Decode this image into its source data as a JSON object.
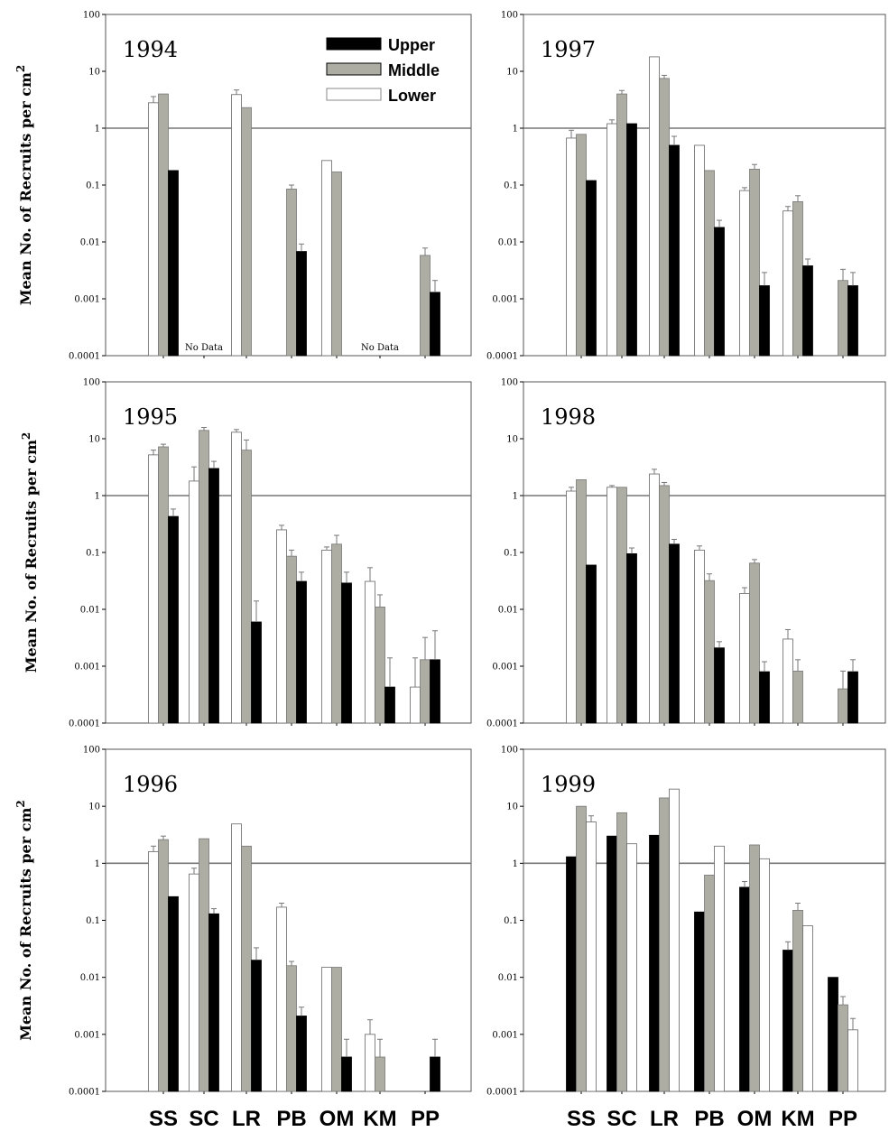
{
  "y_axis_label": "Mean No. of Recruits per cm",
  "y_axis_label_sup": "2",
  "y_tick_labels": [
    "100",
    "10",
    "1",
    "0.1",
    "0.01",
    "0.001",
    "0.0001"
  ],
  "x_category_labels": [
    "SS",
    "SC",
    "LR",
    "PB",
    "OM",
    "KM",
    "PP"
  ],
  "legend": [
    {
      "name": "Upper",
      "color": "#000000"
    },
    {
      "name": "Middle",
      "color": "#adada3"
    },
    {
      "name": "Lower",
      "color": "#ffffff"
    }
  ],
  "no_data_label": "No Data",
  "chart_data": [
    {
      "type": "bar",
      "title": "1994",
      "scale": "log",
      "ylim": [
        0.0001,
        100
      ],
      "reference_line": 1,
      "categories": [
        "SS",
        "SC",
        "LR",
        "PB",
        "OM",
        "KM",
        "PP"
      ],
      "series_order": [
        "Lower",
        "Middle",
        "Upper"
      ],
      "series": [
        {
          "name": "Lower",
          "values": [
            2.8,
            null,
            3.9,
            null,
            0.27,
            null,
            null
          ],
          "errors": [
            3.6,
            null,
            4.7,
            null,
            null,
            null,
            null
          ]
        },
        {
          "name": "Middle",
          "values": [
            4.0,
            null,
            2.3,
            0.085,
            0.17,
            null,
            0.0058
          ],
          "errors": [
            null,
            null,
            null,
            0.1,
            null,
            null,
            0.0078
          ]
        },
        {
          "name": "Upper",
          "values": [
            0.18,
            null,
            null,
            0.0068,
            null,
            null,
            0.0013
          ],
          "errors": [
            null,
            null,
            null,
            0.0092,
            null,
            null,
            0.0021
          ]
        }
      ],
      "annotations": [
        {
          "category": "SC",
          "text": "No Data"
        },
        {
          "category": "KM",
          "text": "No Data"
        }
      ]
    },
    {
      "type": "bar",
      "title": "1997",
      "scale": "log",
      "ylim": [
        0.0001,
        100
      ],
      "reference_line": 1,
      "categories": [
        "SS",
        "SC",
        "LR",
        "PB",
        "OM",
        "KM",
        "PP"
      ],
      "series_order": [
        "Lower",
        "Middle",
        "Upper"
      ],
      "series": [
        {
          "name": "Lower",
          "values": [
            0.67,
            1.2,
            18,
            0.5,
            0.08,
            0.035,
            null
          ],
          "errors": [
            0.92,
            1.4,
            null,
            null,
            0.09,
            0.042,
            null
          ]
        },
        {
          "name": "Middle",
          "values": [
            0.78,
            4.0,
            7.5,
            0.18,
            0.19,
            0.051,
            0.0021
          ],
          "errors": [
            null,
            4.6,
            8.5,
            null,
            0.23,
            0.065,
            0.0033
          ]
        },
        {
          "name": "Upper",
          "values": [
            0.12,
            1.2,
            0.5,
            0.018,
            0.0017,
            0.0038,
            0.0017
          ],
          "errors": [
            null,
            null,
            0.72,
            0.024,
            0.0029,
            0.005,
            0.0029
          ]
        }
      ],
      "annotations": []
    },
    {
      "type": "bar",
      "title": "1995",
      "scale": "log",
      "ylim": [
        0.0001,
        100
      ],
      "reference_line": 1,
      "categories": [
        "SS",
        "SC",
        "LR",
        "PB",
        "OM",
        "KM",
        "PP"
      ],
      "series_order": [
        "Lower",
        "Middle",
        "Upper"
      ],
      "series": [
        {
          "name": "Lower",
          "values": [
            5.2,
            1.8,
            13,
            0.25,
            0.11,
            0.031,
            0.00043
          ],
          "errors": [
            6.3,
            3.2,
            14.5,
            0.3,
            0.125,
            0.054,
            0.0014
          ]
        },
        {
          "name": "Middle",
          "values": [
            7.2,
            14,
            6.3,
            0.086,
            0.14,
            0.011,
            0.0013
          ],
          "errors": [
            8.0,
            15.8,
            9.5,
            0.11,
            0.2,
            0.018,
            0.0032
          ]
        },
        {
          "name": "Upper",
          "values": [
            0.43,
            3.0,
            0.006,
            0.031,
            0.029,
            0.00043,
            0.0013
          ],
          "errors": [
            0.58,
            4.0,
            0.014,
            0.045,
            0.045,
            0.0014,
            0.0042
          ]
        }
      ],
      "annotations": []
    },
    {
      "type": "bar",
      "title": "1998",
      "scale": "log",
      "ylim": [
        0.0001,
        100
      ],
      "reference_line": 1,
      "categories": [
        "SS",
        "SC",
        "LR",
        "PB",
        "OM",
        "KM",
        "PP"
      ],
      "series_order": [
        "Lower",
        "Middle",
        "Upper"
      ],
      "series": [
        {
          "name": "Lower",
          "values": [
            1.2,
            1.4,
            2.4,
            0.11,
            0.019,
            0.003,
            null
          ],
          "errors": [
            1.4,
            1.5,
            2.9,
            0.13,
            0.024,
            0.0044,
            null
          ]
        },
        {
          "name": "Middle",
          "values": [
            1.9,
            1.4,
            1.5,
            0.032,
            0.065,
            0.00082,
            0.0004
          ],
          "errors": [
            null,
            null,
            1.7,
            0.042,
            0.075,
            0.0013,
            0.00082
          ]
        },
        {
          "name": "Upper",
          "values": [
            0.06,
            0.095,
            0.14,
            0.0021,
            0.0008,
            null,
            0.0008
          ],
          "errors": [
            null,
            0.12,
            0.17,
            0.0027,
            0.0012,
            null,
            0.0013
          ]
        }
      ],
      "annotations": []
    },
    {
      "type": "bar",
      "title": "1996",
      "scale": "log",
      "ylim": [
        0.0001,
        100
      ],
      "reference_line": 1,
      "categories": [
        "SS",
        "SC",
        "LR",
        "PB",
        "OM",
        "KM",
        "PP"
      ],
      "series_order": [
        "Lower",
        "Middle",
        "Upper"
      ],
      "series": [
        {
          "name": "Lower",
          "values": [
            1.6,
            0.65,
            4.9,
            0.17,
            0.015,
            0.001,
            null
          ],
          "errors": [
            2.0,
            0.82,
            null,
            0.2,
            null,
            0.0018,
            null
          ]
        },
        {
          "name": "Middle",
          "values": [
            2.6,
            2.7,
            2.0,
            0.016,
            0.015,
            0.0004,
            null
          ],
          "errors": [
            3.0,
            null,
            null,
            0.019,
            null,
            0.00082,
            null
          ]
        },
        {
          "name": "Upper",
          "values": [
            0.26,
            0.13,
            0.02,
            0.0021,
            0.0004,
            null,
            0.0004
          ],
          "errors": [
            null,
            0.16,
            0.033,
            0.003,
            0.00082,
            null,
            0.00082
          ]
        }
      ],
      "annotations": []
    },
    {
      "type": "bar",
      "title": "1999",
      "scale": "log",
      "ylim": [
        0.0001,
        100
      ],
      "reference_line": 1,
      "categories": [
        "SS",
        "SC",
        "LR",
        "PB",
        "OM",
        "KM",
        "PP"
      ],
      "series_order": [
        "Upper",
        "Middle",
        "Lower"
      ],
      "series": [
        {
          "name": "Upper",
          "values": [
            1.3,
            3.0,
            3.1,
            0.14,
            0.38,
            0.03,
            0.01
          ],
          "errors": [
            null,
            null,
            null,
            null,
            0.48,
            0.042,
            null
          ]
        },
        {
          "name": "Middle",
          "values": [
            10,
            7.7,
            14,
            0.62,
            2.1,
            0.15,
            0.0033
          ],
          "errors": [
            null,
            null,
            null,
            null,
            null,
            0.2,
            0.0046
          ]
        },
        {
          "name": "Lower",
          "values": [
            5.3,
            2.2,
            20,
            2.0,
            1.2,
            0.08,
            0.0012
          ],
          "errors": [
            6.8,
            null,
            null,
            null,
            null,
            null,
            0.0019
          ]
        }
      ],
      "annotations": []
    }
  ]
}
